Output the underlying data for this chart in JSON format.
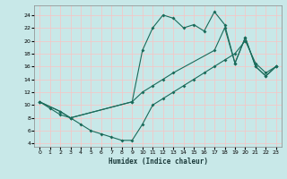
{
  "xlabel": "Humidex (Indice chaleur)",
  "bg_color": "#c8e8e8",
  "grid_color": "#f2c8c8",
  "line_color": "#1a6b5a",
  "xlim": [
    -0.5,
    23.5
  ],
  "ylim": [
    3.5,
    25.5
  ],
  "xticks": [
    0,
    1,
    2,
    3,
    4,
    5,
    6,
    7,
    8,
    9,
    10,
    11,
    12,
    13,
    14,
    15,
    16,
    17,
    18,
    19,
    20,
    21,
    22,
    23
  ],
  "yticks": [
    4,
    6,
    8,
    10,
    12,
    14,
    16,
    18,
    20,
    22,
    24
  ],
  "line1_x": [
    0,
    1,
    2,
    3,
    4,
    5,
    6,
    7,
    8,
    9,
    10,
    11,
    12,
    13,
    14,
    15,
    16,
    17,
    18,
    19,
    20,
    21,
    22,
    23
  ],
  "line1_y": [
    10.5,
    9.5,
    8.5,
    8.0,
    7.0,
    6.0,
    5.5,
    5.0,
    4.5,
    4.5,
    7.0,
    10.0,
    11.0,
    12.0,
    13.0,
    14.0,
    15.0,
    16.0,
    17.0,
    18.0,
    20.0,
    16.5,
    15.0,
    16.0
  ],
  "line2_x": [
    0,
    2,
    3,
    9,
    10,
    11,
    12,
    13,
    14,
    15,
    16,
    17,
    18,
    19,
    20,
    21,
    22,
    23
  ],
  "line2_y": [
    10.5,
    9.0,
    8.0,
    10.5,
    18.5,
    22.0,
    24.0,
    23.5,
    22.0,
    22.5,
    21.5,
    24.5,
    22.5,
    16.5,
    20.5,
    16.0,
    14.5,
    16.0
  ],
  "line3_x": [
    0,
    2,
    3,
    9,
    10,
    11,
    12,
    13,
    17,
    18,
    19,
    20,
    21,
    22,
    23
  ],
  "line3_y": [
    10.5,
    9.0,
    8.0,
    10.5,
    12.0,
    13.0,
    14.0,
    15.0,
    18.5,
    22.0,
    16.5,
    20.5,
    16.0,
    14.5,
    16.0
  ]
}
